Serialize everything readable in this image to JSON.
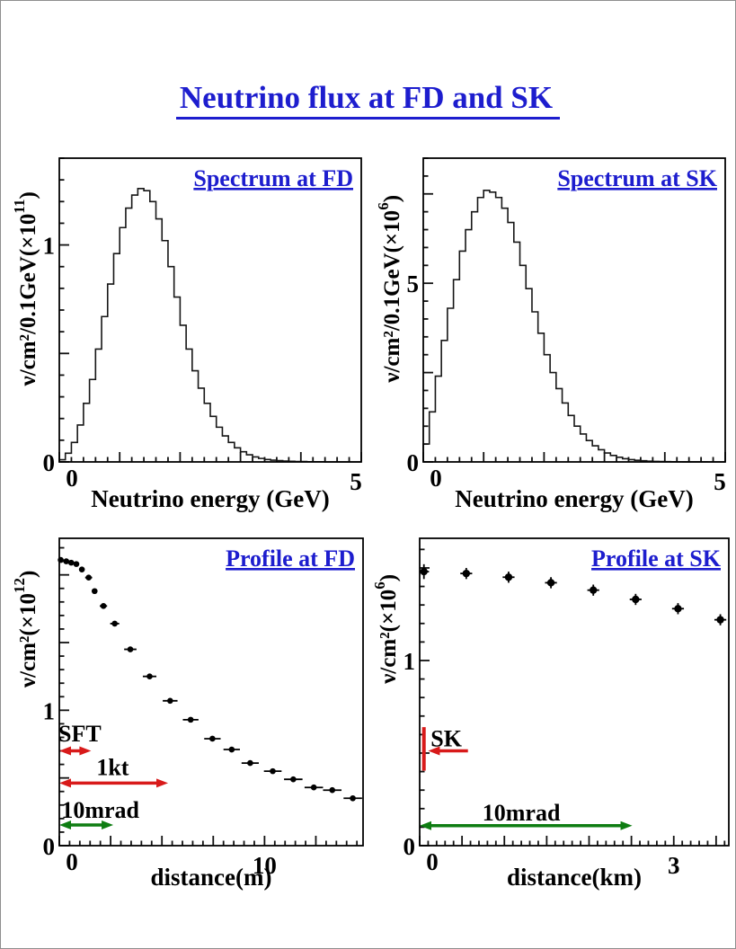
{
  "page": {
    "title": "Neutrino flux at FD and SK",
    "title_color": "#1d1dce"
  },
  "colors": {
    "accent_blue": "#1d1dce",
    "annotation_red": "#d81a1a",
    "annotation_green": "#0e7d12",
    "line_black": "#161616"
  },
  "chart_data": [
    {
      "id": "spectrum-fd",
      "type": "bar",
      "title": "Spectrum at FD",
      "xlabel": "Neutrino energy (GeV)",
      "ylabel": {
        "base": "ν/cm²/0.1GeV(×10",
        "exp": "11",
        "close": ")"
      },
      "xlim": [
        0,
        5
      ],
      "ylim": [
        0,
        1.4
      ],
      "x_ticks": {
        "minor": 0.2,
        "medium": 1,
        "labels": [
          {
            "v": 0,
            "t": "0"
          },
          {
            "v": 5,
            "t": "5"
          }
        ]
      },
      "y_ticks": {
        "minor": 0.1,
        "medium": 0.5,
        "labels": [
          {
            "v": 0,
            "t": "0"
          },
          {
            "v": 1,
            "t": "1"
          }
        ]
      },
      "bin_width": 0.1,
      "values": [
        0.01,
        0.04,
        0.09,
        0.17,
        0.27,
        0.38,
        0.52,
        0.67,
        0.82,
        0.96,
        1.08,
        1.17,
        1.23,
        1.26,
        1.25,
        1.2,
        1.12,
        1.02,
        0.9,
        0.76,
        0.63,
        0.52,
        0.42,
        0.34,
        0.27,
        0.21,
        0.16,
        0.12,
        0.09,
        0.065,
        0.047,
        0.033,
        0.023,
        0.016,
        0.011,
        0.008,
        0.006,
        0.004,
        0.003,
        0.002,
        0.002,
        0.001,
        0.001,
        0.001,
        0,
        0,
        0,
        0,
        0,
        0
      ],
      "annotations": []
    },
    {
      "id": "spectrum-sk",
      "type": "bar",
      "title": "Spectrum at SK",
      "xlabel": "Neutrino energy (GeV)",
      "ylabel": {
        "base": "ν/cm²/0.1GeV(×10",
        "exp": "6",
        "close": ")"
      },
      "xlim": [
        0,
        5
      ],
      "ylim": [
        0,
        8.5
      ],
      "x_ticks": {
        "minor": 0.2,
        "medium": 1,
        "labels": [
          {
            "v": 0,
            "t": "0"
          },
          {
            "v": 5,
            "t": "5"
          }
        ]
      },
      "y_ticks": {
        "minor": 0.5,
        "medium": 2.5,
        "labels": [
          {
            "v": 0,
            "t": "0"
          },
          {
            "v": 5,
            "t": "5"
          }
        ]
      },
      "bin_width": 0.1,
      "values": [
        0.5,
        1.4,
        2.4,
        3.4,
        4.3,
        5.1,
        5.9,
        6.5,
        7.0,
        7.4,
        7.6,
        7.55,
        7.4,
        7.1,
        6.7,
        6.15,
        5.5,
        4.85,
        4.2,
        3.6,
        3.0,
        2.5,
        2.05,
        1.65,
        1.3,
        1.0,
        0.78,
        0.6,
        0.45,
        0.34,
        0.25,
        0.18,
        0.13,
        0.09,
        0.065,
        0.045,
        0.032,
        0.022,
        0.015,
        0.01,
        0.007,
        0.005,
        0.003,
        0.002,
        0.002,
        0.001,
        0.001,
        0,
        0,
        0
      ],
      "annotations": []
    },
    {
      "id": "profile-fd",
      "type": "scatter",
      "title": "Profile at FD",
      "xlabel": "distance(m)",
      "ylabel": {
        "base": "ν/cm²(×10",
        "exp": "12",
        "close": ")"
      },
      "xlim": [
        0,
        14.8
      ],
      "ylim": [
        0,
        2.27
      ],
      "x_ticks": {
        "minor": 0.5,
        "medium": 2.5,
        "labels": [
          {
            "v": 0,
            "t": "0"
          },
          {
            "v": 10,
            "t": "10"
          }
        ]
      },
      "y_ticks": {
        "minor": 0.1,
        "medium": 0.5,
        "labels": [
          {
            "v": 0,
            "t": "0"
          },
          {
            "v": 1,
            "t": "1"
          }
        ]
      },
      "points": [
        [
          0.07,
          2.11,
          0.07,
          0
        ],
        [
          0.34,
          2.1,
          0.07,
          0
        ],
        [
          0.58,
          2.09,
          0.07,
          0
        ],
        [
          0.83,
          2.08,
          0.07,
          0
        ],
        [
          1.1,
          2.04,
          0.1,
          0
        ],
        [
          1.43,
          1.98,
          0.17,
          0
        ],
        [
          1.72,
          1.88,
          0.13,
          0
        ],
        [
          2.15,
          1.77,
          0.18,
          0
        ],
        [
          2.7,
          1.64,
          0.22,
          0
        ],
        [
          3.46,
          1.45,
          0.3,
          0
        ],
        [
          4.4,
          1.25,
          0.33,
          0
        ],
        [
          5.4,
          1.07,
          0.36,
          0
        ],
        [
          6.4,
          0.93,
          0.38,
          0
        ],
        [
          7.46,
          0.79,
          0.4,
          0
        ],
        [
          8.4,
          0.71,
          0.4,
          0
        ],
        [
          9.3,
          0.61,
          0.42,
          0
        ],
        [
          10.4,
          0.55,
          0.43,
          0
        ],
        [
          11.4,
          0.49,
          0.45,
          0
        ],
        [
          12.4,
          0.43,
          0.45,
          0
        ],
        [
          13.3,
          0.41,
          0.45,
          0
        ],
        [
          14.3,
          0.35,
          0.45,
          0
        ]
      ],
      "annotations": [
        {
          "type": "text",
          "text": "SFT",
          "x": 1.0,
          "y": 0.77,
          "color": "#000000",
          "anchor": "middle"
        },
        {
          "type": "darrow",
          "x1": 0,
          "x2": 1.55,
          "y": 0.7,
          "color": "#d81a1a"
        },
        {
          "type": "text",
          "text": "1kt",
          "x": 2.6,
          "y": 0.52,
          "color": "#000000",
          "anchor": "middle"
        },
        {
          "type": "darrow",
          "x1": 0,
          "x2": 5.3,
          "y": 0.462,
          "color": "#d81a1a"
        },
        {
          "type": "text",
          "text": "10mrad",
          "x": 2.0,
          "y": 0.205,
          "color": "#000000",
          "anchor": "middle"
        },
        {
          "type": "darrow",
          "x1": 0,
          "x2": 2.63,
          "y": 0.153,
          "color": "#0e7d12"
        }
      ]
    },
    {
      "id": "profile-sk",
      "type": "scatter",
      "title": "Profile at SK",
      "xlabel": "distance(km)",
      "ylabel": {
        "base": "ν/cm²(×10",
        "exp": "6",
        "close": ")"
      },
      "xlim": [
        0,
        3.65
      ],
      "ylim": [
        0,
        1.66
      ],
      "x_ticks": {
        "minor": 0.1,
        "medium": 0.5,
        "labels": [
          {
            "v": 0,
            "t": "0"
          },
          {
            "v": 3,
            "t": "3"
          }
        ]
      },
      "y_ticks": {
        "minor": 0.1,
        "medium": 0.5,
        "labels": [
          {
            "v": 0,
            "t": "0"
          },
          {
            "v": 1,
            "t": "1"
          }
        ]
      },
      "points": [
        [
          0.05,
          1.48,
          0.06,
          0.04
        ],
        [
          0.55,
          1.47,
          0.07,
          0.03
        ],
        [
          1.05,
          1.45,
          0.07,
          0.03
        ],
        [
          1.55,
          1.42,
          0.07,
          0.03
        ],
        [
          2.05,
          1.38,
          0.07,
          0.03
        ],
        [
          2.55,
          1.33,
          0.07,
          0.03
        ],
        [
          3.05,
          1.28,
          0.07,
          0.03
        ],
        [
          3.55,
          1.22,
          0.07,
          0.03
        ]
      ],
      "annotations": [
        {
          "type": "vline",
          "x": 0.05,
          "y1": 0.405,
          "y2": 0.64,
          "color": "#d81a1a"
        },
        {
          "type": "arrow",
          "x1": 0.57,
          "x2": 0.1,
          "y": 0.512,
          "color": "#d81a1a"
        },
        {
          "type": "text",
          "text": "SK",
          "x": 0.13,
          "y": 0.537,
          "color": "#000000",
          "anchor": "start"
        },
        {
          "type": "text",
          "text": "10mrad",
          "x": 1.2,
          "y": 0.135,
          "color": "#000000",
          "anchor": "middle"
        },
        {
          "type": "darrow",
          "x1": 0,
          "x2": 2.51,
          "y": 0.108,
          "color": "#0e7d12"
        }
      ]
    }
  ]
}
